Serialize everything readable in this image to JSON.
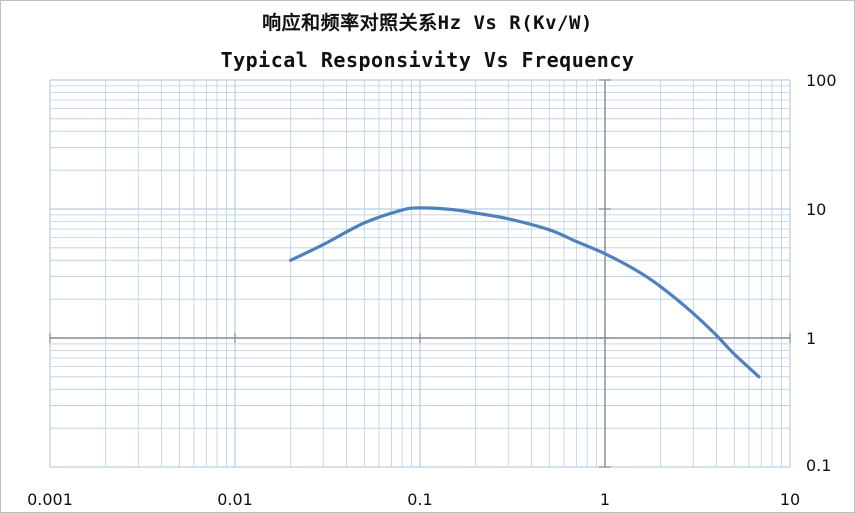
{
  "chart_data": {
    "type": "line",
    "title": "响应和频率对照关系Hz Vs R(Kv/W)",
    "subtitle": "Typical Responsivity Vs Frequency",
    "xlabel": "",
    "ylabel": "",
    "x_scale": "log",
    "y_scale": "log",
    "xlim": [
      0.001,
      10
    ],
    "ylim": [
      0.1,
      100
    ],
    "x_ticks": [
      "0.001",
      "0.01",
      "0.1",
      "1",
      "10"
    ],
    "y_ticks": [
      "100",
      "10",
      "1",
      "0.1"
    ],
    "y_axis_side": "right",
    "grid": true,
    "colors": {
      "line": "#4f81bd",
      "grid": "#b9cde4",
      "axis": "#8c8c8c"
    },
    "series": [
      {
        "x": [
          0.02,
          0.03,
          0.05,
          0.08,
          0.1,
          0.15,
          0.2,
          0.3,
          0.5,
          0.7,
          1.0,
          1.5,
          2.0,
          3.0,
          4.0,
          5.0,
          6.8
        ],
        "y": [
          4.0,
          5.3,
          7.8,
          9.8,
          10.2,
          9.9,
          9.3,
          8.4,
          6.9,
          5.6,
          4.5,
          3.3,
          2.5,
          1.55,
          1.05,
          0.75,
          0.5
        ]
      }
    ]
  }
}
